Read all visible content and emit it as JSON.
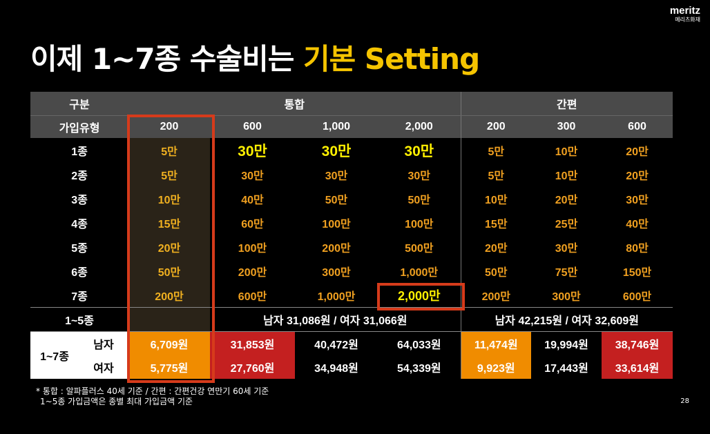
{
  "title": {
    "main": "이제 1~7종 수술비는",
    "highlight": "기본 Setting"
  },
  "brand": {
    "name": "meritz",
    "sub": "메리츠화재"
  },
  "table": {
    "header": {
      "group_label": "구분",
      "tonghap_label": "통합",
      "ganpyeon_label": "간편"
    },
    "subheader": {
      "type_label": "가입유형",
      "cols": [
        "200",
        "600",
        "1,000",
        "2,000",
        "200",
        "300",
        "600"
      ]
    },
    "rows": [
      {
        "label": "1종",
        "cells": [
          "5만",
          "30만",
          "30만",
          "30만",
          "5만",
          "10만",
          "20만"
        ]
      },
      {
        "label": "2종",
        "cells": [
          "5만",
          "30만",
          "30만",
          "30만",
          "5만",
          "10만",
          "20만"
        ]
      },
      {
        "label": "3종",
        "cells": [
          "10만",
          "40만",
          "50만",
          "50만",
          "10만",
          "20만",
          "30만"
        ]
      },
      {
        "label": "4종",
        "cells": [
          "15만",
          "60만",
          "100만",
          "100만",
          "15만",
          "25만",
          "40만"
        ]
      },
      {
        "label": "5종",
        "cells": [
          "20만",
          "100만",
          "200만",
          "500만",
          "20만",
          "30만",
          "80만"
        ]
      },
      {
        "label": "6종",
        "cells": [
          "50만",
          "200만",
          "300만",
          "1,000만",
          "50만",
          "75만",
          "150만"
        ]
      },
      {
        "label": "7종",
        "cells": [
          "200만",
          "600만",
          "1,000만",
          "2,000만",
          "200만",
          "300만",
          "600만"
        ]
      }
    ],
    "summary": {
      "label": "1~5종",
      "tonghap": "남자 31,086원 / 여자 31,066원",
      "ganpyeon": "남자 42,215원 / 여자 32,609원"
    },
    "premium": {
      "label": "1~7종",
      "male_label": "남자",
      "female_label": "여자",
      "male": [
        "6,709원",
        "31,853원",
        "40,472원",
        "64,033원",
        "11,474원",
        "19,994원",
        "38,746원"
      ],
      "female": [
        "5,775원",
        "27,760원",
        "34,948원",
        "54,339원",
        "9,923원",
        "17,443원",
        "33,614원"
      ]
    }
  },
  "notes": {
    "line1": "* 통합 : 알파플러스 40세 기준 / 간편 : 간편건강 연만기 60세 기준",
    "line2": "1~5종 가입금액은 종별 최대 가입금액 기준"
  },
  "page_number": "28",
  "colors": {
    "highlight": "#f5c400",
    "box_border": "#d63b1b",
    "orange": "#f08c00",
    "red": "#c42020"
  }
}
